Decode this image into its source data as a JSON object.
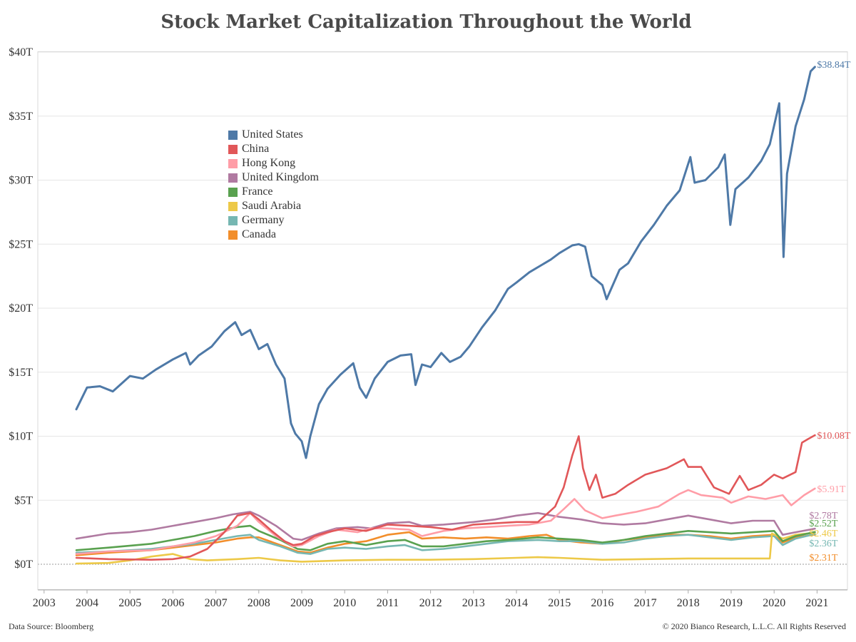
{
  "chart_data": {
    "type": "line",
    "title": "Stock Market Capitalization Throughout the World",
    "xlabel": "",
    "ylabel": "",
    "ylim": [
      0,
      40
    ],
    "xlim": [
      2003.0,
      2021.25
    ],
    "y_ticks": [
      "$0T",
      "$5T",
      "$10T",
      "$15T",
      "$20T",
      "$25T",
      "$30T",
      "$35T",
      "$40T"
    ],
    "x_ticks": [
      "2003",
      "2004",
      "2005",
      "2006",
      "2007",
      "2008",
      "2009",
      "2010",
      "2011",
      "2012",
      "2013",
      "2014",
      "2015",
      "2016",
      "2017",
      "2018",
      "2019",
      "2020",
      "2021"
    ],
    "grid": "horizontal",
    "legend": "upper-left",
    "series": [
      {
        "name": "United States",
        "color": "#4e79a7",
        "end_label": "$38.84T",
        "x": [
          2003.75,
          2004.0,
          2004.3,
          2004.6,
          2005.0,
          2005.3,
          2005.6,
          2006.0,
          2006.3,
          2006.4,
          2006.6,
          2006.9,
          2007.2,
          2007.45,
          2007.6,
          2007.8,
          2008.0,
          2008.2,
          2008.4,
          2008.6,
          2008.75,
          2008.85,
          2009.0,
          2009.1,
          2009.2,
          2009.4,
          2009.6,
          2009.9,
          2010.2,
          2010.35,
          2010.5,
          2010.7,
          2011.0,
          2011.3,
          2011.55,
          2011.65,
          2011.8,
          2012.0,
          2012.25,
          2012.45,
          2012.7,
          2012.9,
          2013.2,
          2013.5,
          2013.8,
          2014.0,
          2014.3,
          2014.6,
          2014.8,
          2015.0,
          2015.3,
          2015.45,
          2015.6,
          2015.75,
          2016.0,
          2016.1,
          2016.4,
          2016.6,
          2016.9,
          2017.2,
          2017.5,
          2017.8,
          2018.05,
          2018.15,
          2018.4,
          2018.7,
          2018.85,
          2018.98,
          2019.1,
          2019.4,
          2019.7,
          2019.9,
          2020.12,
          2020.22,
          2020.3,
          2020.5,
          2020.7,
          2020.85,
          2020.95
        ],
        "y": [
          12.1,
          13.8,
          13.9,
          13.5,
          14.7,
          14.5,
          15.2,
          16.0,
          16.5,
          15.6,
          16.3,
          17.0,
          18.2,
          18.9,
          17.9,
          18.3,
          16.8,
          17.2,
          15.6,
          14.5,
          11.0,
          10.2,
          9.6,
          8.3,
          10.0,
          12.5,
          13.7,
          14.8,
          15.7,
          13.8,
          13.0,
          14.5,
          15.8,
          16.3,
          16.4,
          14.0,
          15.6,
          15.4,
          16.5,
          15.8,
          16.2,
          17.0,
          18.5,
          19.8,
          21.5,
          22.0,
          22.8,
          23.4,
          23.8,
          24.3,
          24.9,
          25.0,
          24.8,
          22.5,
          21.8,
          20.7,
          23.0,
          23.5,
          25.2,
          26.5,
          28.0,
          29.2,
          31.8,
          29.8,
          30.0,
          31.0,
          32.0,
          26.5,
          29.3,
          30.2,
          31.5,
          32.8,
          36.0,
          24.0,
          30.5,
          34.2,
          36.3,
          38.5,
          38.84
        ]
      },
      {
        "name": "China",
        "color": "#e15759",
        "end_label": "$10.08T",
        "x": [
          2003.75,
          2004.5,
          2005.5,
          2006.0,
          2006.4,
          2006.8,
          2007.2,
          2007.5,
          2007.8,
          2008.0,
          2008.3,
          2008.6,
          2008.8,
          2009.0,
          2009.3,
          2009.6,
          2010.0,
          2010.5,
          2011.0,
          2011.5,
          2012.0,
          2012.5,
          2013.0,
          2013.5,
          2014.0,
          2014.5,
          2014.9,
          2015.1,
          2015.3,
          2015.45,
          2015.55,
          2015.7,
          2015.85,
          2016.0,
          2016.3,
          2016.6,
          2017.0,
          2017.5,
          2017.9,
          2018.0,
          2018.3,
          2018.6,
          2018.95,
          2019.2,
          2019.4,
          2019.7,
          2020.0,
          2020.2,
          2020.5,
          2020.65,
          2020.8,
          2020.95
        ],
        "y": [
          0.5,
          0.4,
          0.35,
          0.4,
          0.6,
          1.2,
          2.5,
          3.8,
          4.0,
          3.5,
          2.6,
          1.8,
          1.5,
          1.6,
          2.2,
          2.5,
          2.8,
          2.6,
          3.1,
          3.0,
          2.9,
          2.7,
          3.1,
          3.2,
          3.3,
          3.3,
          4.5,
          6.0,
          8.5,
          10.0,
          7.5,
          5.8,
          7.0,
          5.2,
          5.5,
          6.2,
          7.0,
          7.5,
          8.2,
          7.6,
          7.6,
          6.0,
          5.5,
          6.9,
          5.8,
          6.2,
          7.0,
          6.7,
          7.2,
          9.5,
          9.8,
          10.08
        ]
      },
      {
        "name": "Hong Kong",
        "color": "#ff9da7",
        "end_label": "$5.91T",
        "x": [
          2003.75,
          2004.5,
          2005.5,
          2006.0,
          2006.5,
          2007.0,
          2007.5,
          2007.8,
          2008.0,
          2008.4,
          2008.8,
          2009.0,
          2009.4,
          2009.8,
          2010.3,
          2010.6,
          2011.0,
          2011.5,
          2011.8,
          2012.3,
          2012.8,
          2013.3,
          2013.8,
          2014.3,
          2014.8,
          2015.1,
          2015.35,
          2015.6,
          2016.0,
          2016.3,
          2016.8,
          2017.3,
          2017.8,
          2018.0,
          2018.3,
          2018.8,
          2019.0,
          2019.4,
          2019.8,
          2020.2,
          2020.4,
          2020.7,
          2020.95
        ],
        "y": [
          0.8,
          1.0,
          1.1,
          1.4,
          1.7,
          2.2,
          3.0,
          4.0,
          3.3,
          2.2,
          1.4,
          1.5,
          2.2,
          2.7,
          2.5,
          2.8,
          2.8,
          2.7,
          2.2,
          2.6,
          2.8,
          2.9,
          3.0,
          3.1,
          3.4,
          4.3,
          5.1,
          4.2,
          3.6,
          3.8,
          4.1,
          4.5,
          5.5,
          5.8,
          5.4,
          5.2,
          4.8,
          5.3,
          5.1,
          5.4,
          4.6,
          5.4,
          5.91
        ]
      },
      {
        "name": "United Kingdom",
        "color": "#b07aa1",
        "end_label": "$2.78T",
        "x": [
          2003.75,
          2004.5,
          2005.0,
          2005.5,
          2006.0,
          2006.5,
          2007.0,
          2007.4,
          2007.8,
          2008.0,
          2008.4,
          2008.8,
          2009.0,
          2009.4,
          2009.8,
          2010.3,
          2010.6,
          2011.0,
          2011.5,
          2011.8,
          2012.3,
          2013.0,
          2013.5,
          2014.0,
          2014.5,
          2015.0,
          2015.5,
          2016.0,
          2016.5,
          2017.0,
          2017.5,
          2018.0,
          2018.5,
          2019.0,
          2019.5,
          2020.0,
          2020.2,
          2020.5,
          2020.95
        ],
        "y": [
          2.0,
          2.4,
          2.5,
          2.7,
          3.0,
          3.3,
          3.6,
          3.9,
          4.1,
          3.8,
          3.0,
          2.0,
          1.9,
          2.4,
          2.8,
          2.9,
          2.8,
          3.2,
          3.3,
          3.0,
          3.1,
          3.3,
          3.5,
          3.8,
          4.0,
          3.7,
          3.5,
          3.2,
          3.1,
          3.2,
          3.5,
          3.8,
          3.5,
          3.2,
          3.4,
          3.4,
          2.3,
          2.5,
          2.78
        ]
      },
      {
        "name": "France",
        "color": "#59a14f",
        "end_label": "$2.52T",
        "x": [
          2003.75,
          2004.5,
          2005.5,
          2006.0,
          2006.5,
          2007.0,
          2007.5,
          2007.8,
          2008.0,
          2008.5,
          2008.9,
          2009.2,
          2009.6,
          2010.0,
          2010.5,
          2011.0,
          2011.4,
          2011.8,
          2012.3,
          2012.8,
          2013.3,
          2013.8,
          2014.5,
          2015.0,
          2015.5,
          2016.0,
          2016.5,
          2017.0,
          2017.5,
          2018.0,
          2018.5,
          2019.0,
          2019.5,
          2020.0,
          2020.2,
          2020.5,
          2020.95
        ],
        "y": [
          1.1,
          1.3,
          1.6,
          1.9,
          2.2,
          2.6,
          2.9,
          3.0,
          2.6,
          1.9,
          1.2,
          1.1,
          1.6,
          1.8,
          1.5,
          1.8,
          1.9,
          1.4,
          1.4,
          1.6,
          1.8,
          1.9,
          2.1,
          2.0,
          1.9,
          1.7,
          1.9,
          2.2,
          2.4,
          2.6,
          2.5,
          2.4,
          2.5,
          2.6,
          1.8,
          2.2,
          2.52
        ]
      },
      {
        "name": "Saudi Arabia",
        "color": "#edc948",
        "end_label": "$2.46T",
        "x": [
          2003.75,
          2004.5,
          2005.0,
          2005.5,
          2006.0,
          2006.4,
          2006.8,
          2007.5,
          2008.0,
          2008.5,
          2009.0,
          2010.0,
          2011.0,
          2012.0,
          2013.0,
          2014.0,
          2014.5,
          2015.0,
          2016.0,
          2017.0,
          2018.0,
          2019.0,
          2019.9,
          2019.95,
          2020.2,
          2020.5,
          2020.95
        ],
        "y": [
          0.05,
          0.1,
          0.3,
          0.6,
          0.8,
          0.4,
          0.3,
          0.4,
          0.5,
          0.3,
          0.2,
          0.3,
          0.35,
          0.35,
          0.4,
          0.5,
          0.55,
          0.5,
          0.35,
          0.4,
          0.45,
          0.45,
          0.45,
          2.4,
          2.0,
          2.3,
          2.46
        ]
      },
      {
        "name": "Germany",
        "color": "#76b7b2",
        "end_label": "$2.36T",
        "x": [
          2003.75,
          2004.5,
          2005.5,
          2006.0,
          2006.5,
          2007.0,
          2007.5,
          2007.8,
          2008.0,
          2008.5,
          2008.9,
          2009.2,
          2009.6,
          2010.0,
          2010.5,
          2011.0,
          2011.4,
          2011.8,
          2012.3,
          2012.8,
          2013.3,
          2013.8,
          2014.5,
          2015.0,
          2015.5,
          2016.0,
          2016.5,
          2017.0,
          2017.5,
          2018.0,
          2018.5,
          2019.0,
          2019.5,
          2020.0,
          2020.2,
          2020.5,
          2020.95
        ],
        "y": [
          0.9,
          1.0,
          1.2,
          1.4,
          1.6,
          1.9,
          2.2,
          2.3,
          1.9,
          1.4,
          0.9,
          0.8,
          1.2,
          1.3,
          1.2,
          1.4,
          1.5,
          1.1,
          1.2,
          1.4,
          1.6,
          1.8,
          1.9,
          1.8,
          1.8,
          1.6,
          1.7,
          2.0,
          2.2,
          2.3,
          2.1,
          1.9,
          2.1,
          2.2,
          1.5,
          2.0,
          2.36
        ]
      },
      {
        "name": "Canada",
        "color": "#f28e2b",
        "end_label": "$2.31T",
        "x": [
          2003.75,
          2004.5,
          2005.5,
          2006.0,
          2006.5,
          2007.0,
          2007.5,
          2007.8,
          2008.0,
          2008.5,
          2008.9,
          2009.2,
          2009.6,
          2010.0,
          2010.5,
          2011.0,
          2011.5,
          2011.8,
          2012.3,
          2012.8,
          2013.3,
          2013.8,
          2014.3,
          2014.7,
          2015.0,
          2015.5,
          2016.0,
          2016.5,
          2017.0,
          2017.5,
          2018.0,
          2018.5,
          2019.0,
          2019.5,
          2020.0,
          2020.2,
          2020.5,
          2020.95
        ],
        "y": [
          0.7,
          0.9,
          1.1,
          1.3,
          1.5,
          1.7,
          2.0,
          2.1,
          2.1,
          1.5,
          1.0,
          0.9,
          1.3,
          1.6,
          1.8,
          2.3,
          2.5,
          2.0,
          2.1,
          2.0,
          2.1,
          2.0,
          2.2,
          2.3,
          1.9,
          1.7,
          1.6,
          1.9,
          2.1,
          2.3,
          2.3,
          2.2,
          2.0,
          2.2,
          2.3,
          1.7,
          2.1,
          2.31
        ]
      }
    ]
  },
  "footer": {
    "source": "Data Source: Bloomberg",
    "copyright": "© 2020 Bianco Research, L.L.C. All Rights Reserved"
  }
}
